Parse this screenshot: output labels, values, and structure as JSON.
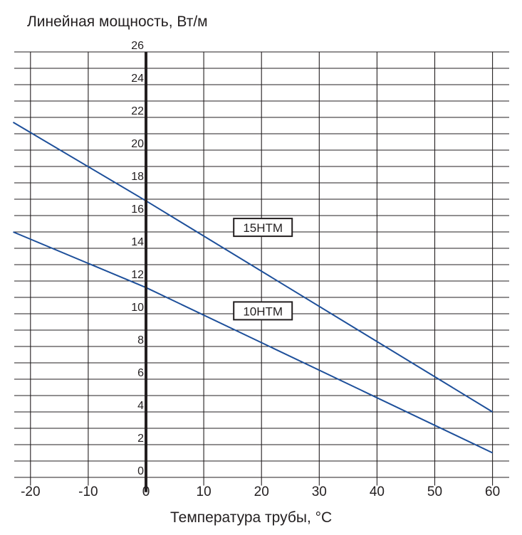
{
  "chart_data": {
    "type": "line",
    "title": "",
    "ylabel": "Линейная мощность, Вт/м",
    "xlabel": "Температура трубы, °C",
    "xlim": [
      -23,
      64
    ],
    "ylim": [
      -0.5,
      26
    ],
    "x_ticks": [
      -20,
      -10,
      0,
      10,
      20,
      30,
      40,
      50,
      60
    ],
    "y_ticks": [
      0,
      2,
      4,
      6,
      8,
      10,
      12,
      14,
      16,
      18,
      20,
      22,
      24,
      26
    ],
    "grid": true,
    "colors": {
      "line": "#1d4f9a",
      "grid": "#231f20",
      "text": "#231f20"
    },
    "series": [
      {
        "name": "15НТМ",
        "x": [
          -23,
          0,
          60
        ],
        "y": [
          21.7,
          16.9,
          4.0
        ]
      },
      {
        "name": "10НТМ",
        "x": [
          -23,
          0,
          60
        ],
        "y": [
          15.0,
          11.6,
          1.5
        ]
      }
    ],
    "annotations": [
      {
        "text": "15НТМ",
        "x": 20,
        "y": 15.3
      },
      {
        "text": "10НТМ",
        "x": 20,
        "y": 10.2
      }
    ]
  }
}
